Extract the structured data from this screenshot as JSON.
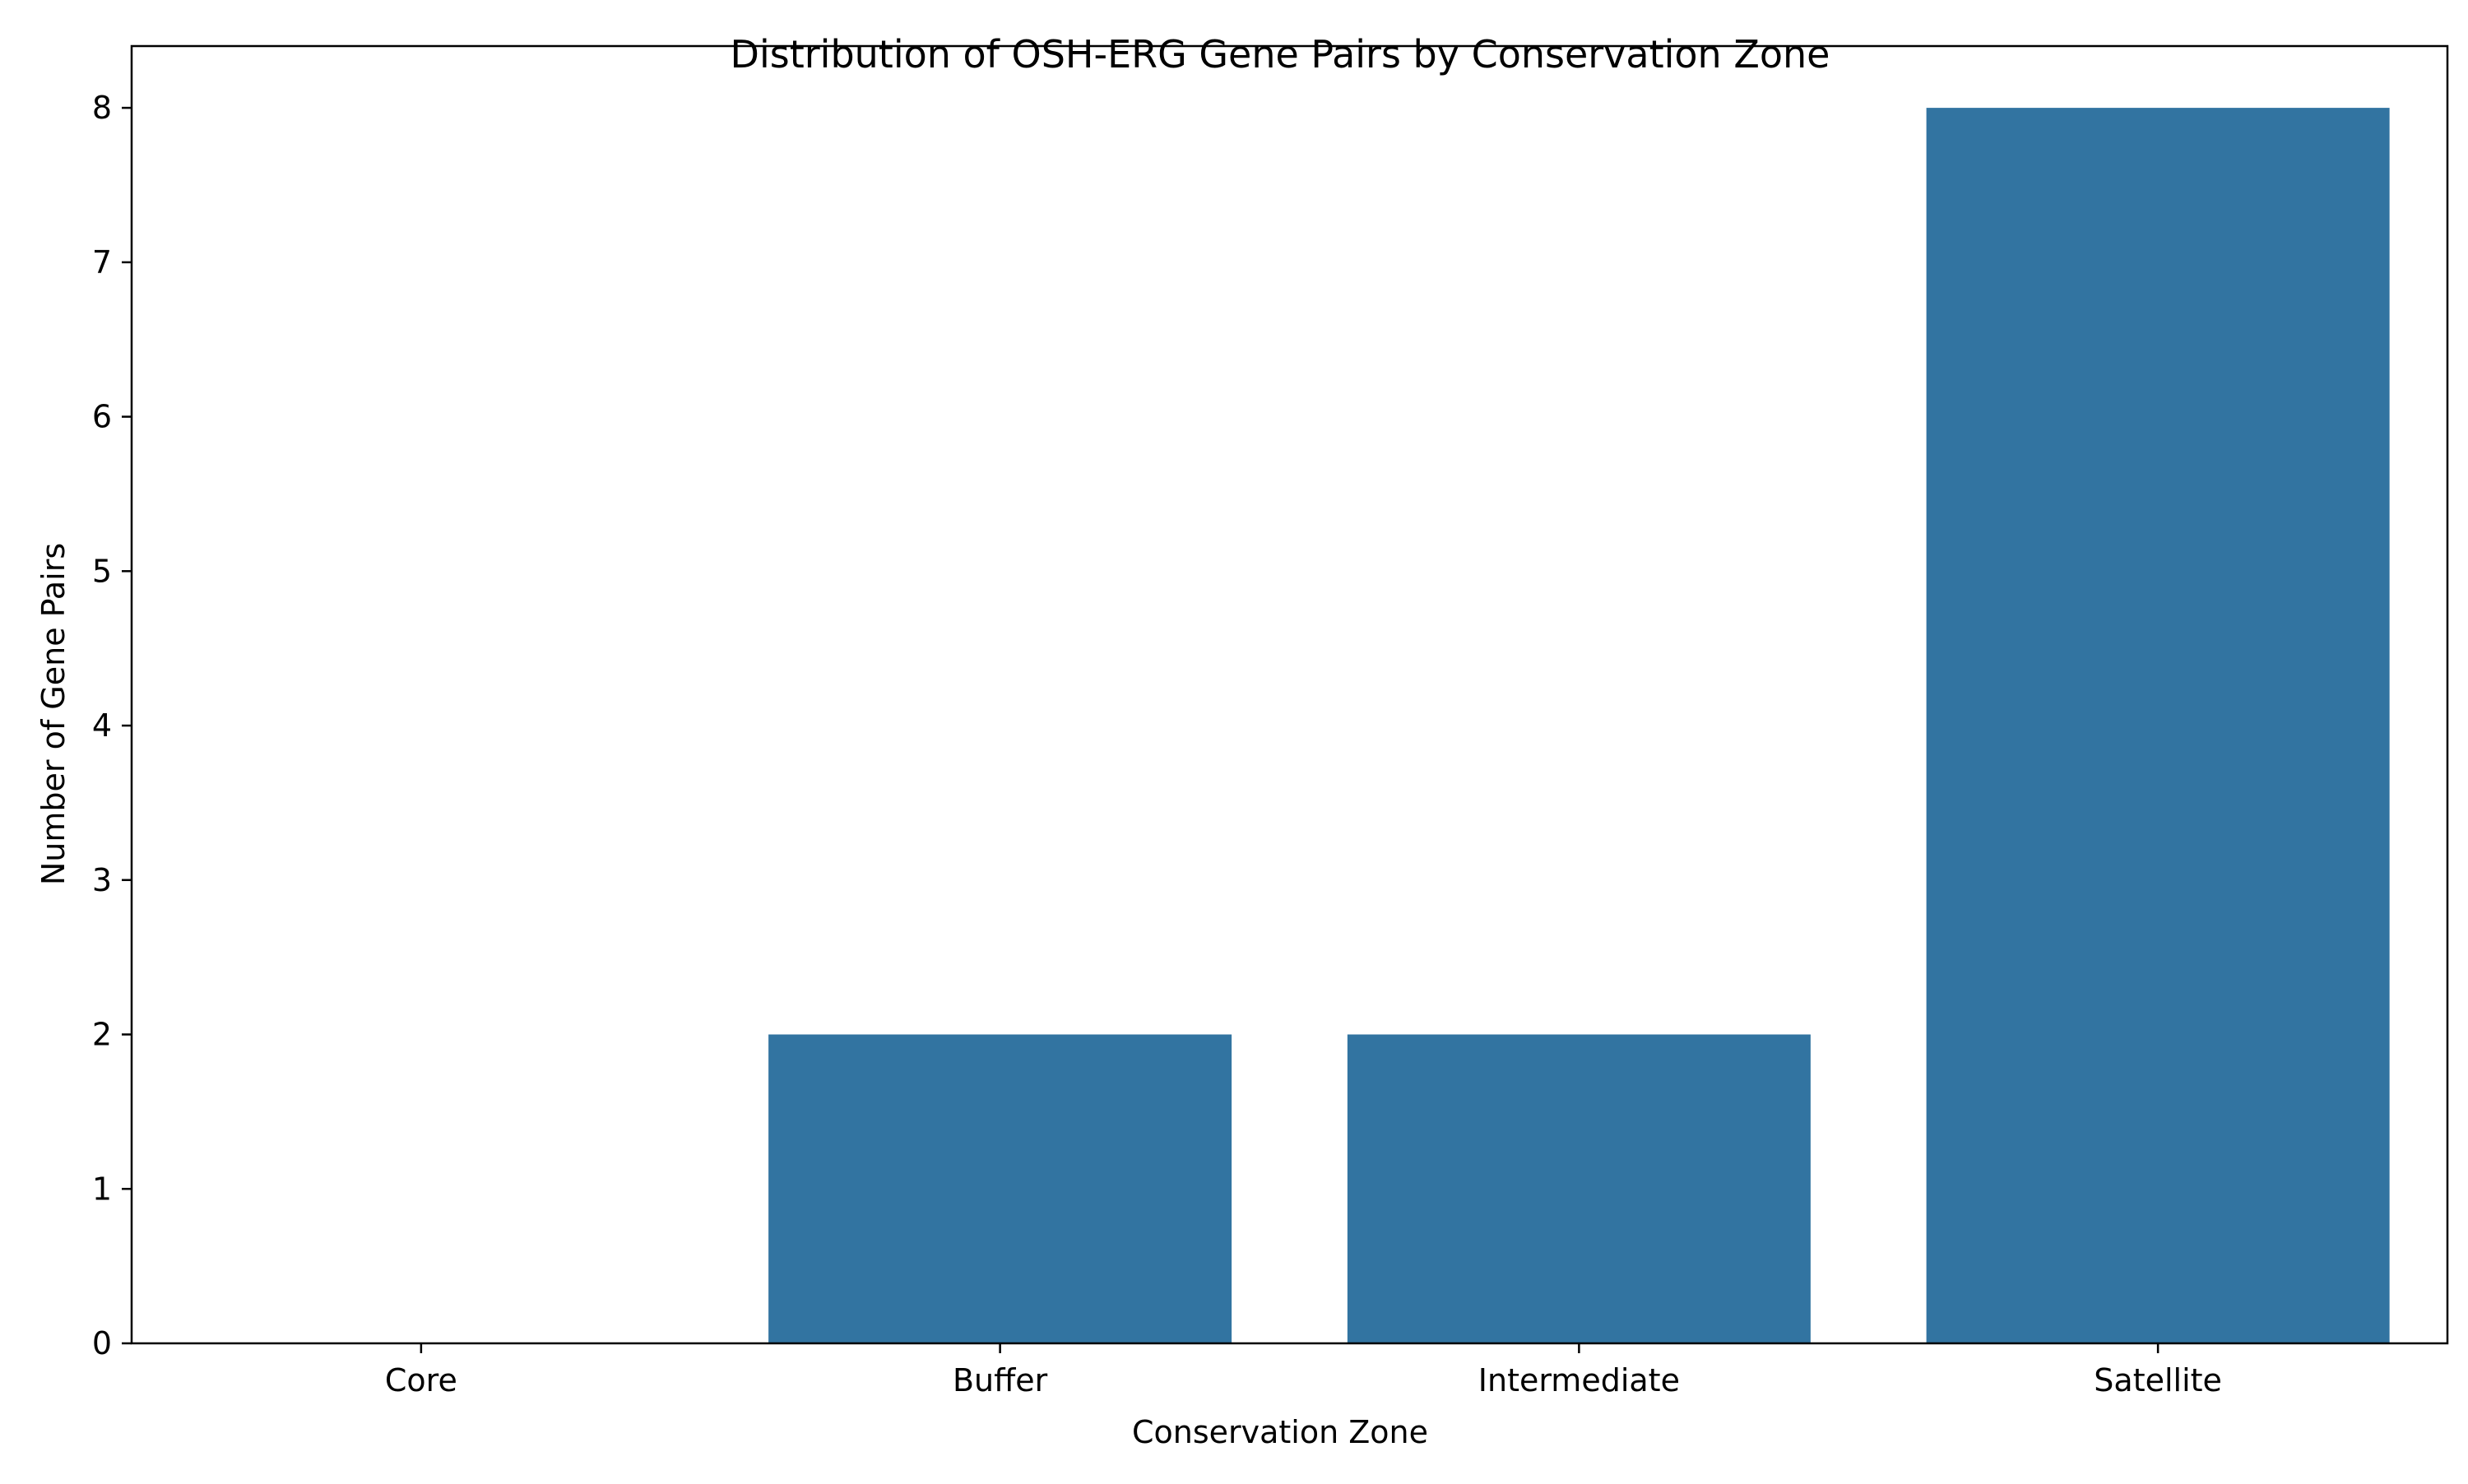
{
  "chart_data": {
    "type": "bar",
    "title": "Distribution of OSH-ERG Gene Pairs by Conservation Zone",
    "xlabel": "Conservation Zone",
    "ylabel": "Number of Gene Pairs",
    "categories": [
      "Core",
      "Buffer",
      "Intermediate",
      "Satellite"
    ],
    "values": [
      0,
      2,
      2,
      8
    ],
    "ylim": [
      0,
      8.4
    ],
    "yticks": [
      0,
      1,
      2,
      3,
      4,
      5,
      6,
      7,
      8
    ],
    "grid": false,
    "legend": "none",
    "colors": {
      "bar": "#3274a1",
      "axis": "#000000",
      "background": "#ffffff"
    }
  }
}
